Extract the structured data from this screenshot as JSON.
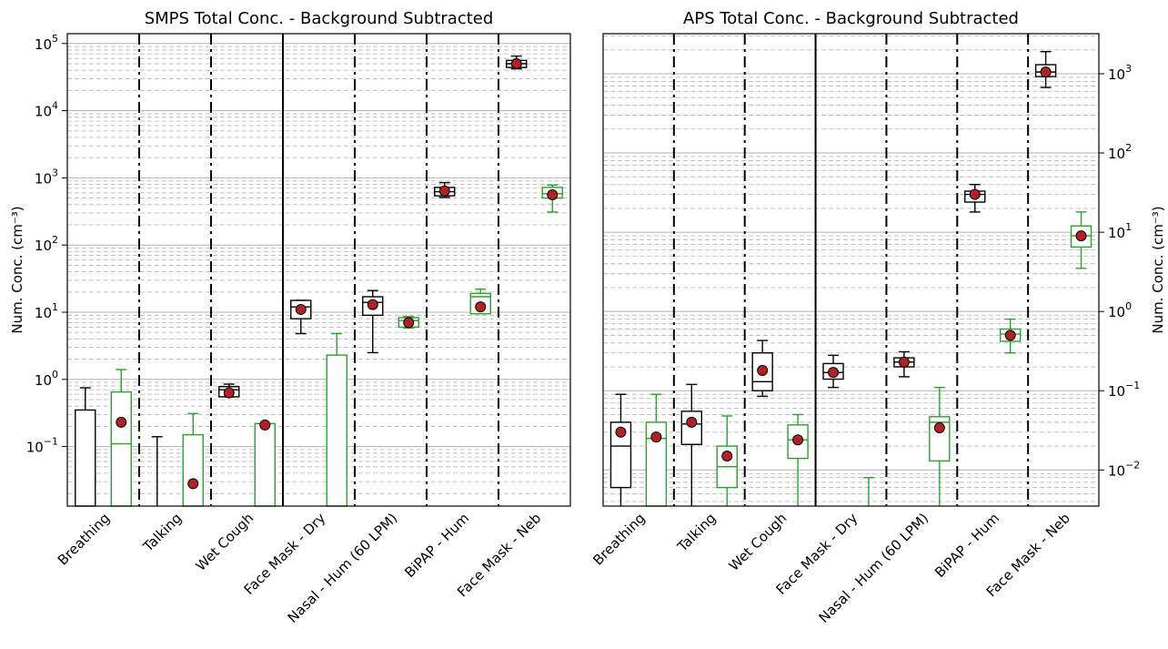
{
  "categories": [
    "Breathing",
    "Talking",
    "Wet Cough",
    "Face Mask - Dry",
    "Nasal - Hum (60 LPM)",
    "BiPAP - Hum",
    "Face Mask - Neb"
  ],
  "chart_data": [
    {
      "type": "box",
      "title": "SMPS Total Conc. - Background Subtracted",
      "ylabel": "Num. Conc. (cm⁻³)",
      "yscale": "log",
      "ylim": [
        0.013,
        140000
      ],
      "yticks": [
        {
          "value": 0.1,
          "base": "10",
          "exp": "−1"
        },
        {
          "value": 1,
          "base": "10",
          "exp": "0"
        },
        {
          "value": 10,
          "base": "10",
          "exp": "1"
        },
        {
          "value": 100,
          "base": "10",
          "exp": "2"
        },
        {
          "value": 1000,
          "base": "10",
          "exp": "3"
        },
        {
          "value": 10000,
          "base": "10",
          "exp": "4"
        },
        {
          "value": 100000,
          "base": "10",
          "exp": "5"
        }
      ],
      "ytick_side": "left",
      "grid": "y major + minor",
      "colors": {
        "series_a": "#000000",
        "series_b": "#2ca02c",
        "mean_fill": "#b22222"
      },
      "series": [
        {
          "color": "black",
          "boxes": [
            {
              "category": "Breathing",
              "whisker_low": null,
              "q1": null,
              "median": null,
              "q3": 0.35,
              "whisker_high": 0.75,
              "mean": null
            },
            {
              "category": "Talking",
              "whisker_low": null,
              "q1": null,
              "median": null,
              "q3": null,
              "whisker_high": 0.14,
              "mean": null
            },
            {
              "category": "Wet Cough",
              "whisker_low": 0.55,
              "q1": 0.55,
              "median": 0.7,
              "q3": 0.78,
              "whisker_high": 0.85,
              "mean": 0.63
            },
            {
              "category": "Face Mask - Dry",
              "whisker_low": 4.8,
              "q1": 8.0,
              "median": 12.0,
              "q3": 15.0,
              "whisker_high": 15.0,
              "mean": 11.0
            },
            {
              "category": "Nasal - Hum (60 LPM)",
              "whisker_low": 2.5,
              "q1": 9.0,
              "median": 14.0,
              "q3": 17.0,
              "whisker_high": 21.0,
              "mean": 13.0
            },
            {
              "category": "BiPAP - Hum",
              "whisker_low": 510,
              "q1": 540,
              "median": 620,
              "q3": 720,
              "whisker_high": 850,
              "mean": 640
            },
            {
              "category": "Face Mask - Neb",
              "whisker_low": 42000,
              "q1": 44000,
              "median": 50000,
              "q3": 56000,
              "whisker_high": 65000,
              "mean": 50000
            }
          ]
        },
        {
          "color": "green",
          "boxes": [
            {
              "category": "Breathing",
              "whisker_low": null,
              "q1": null,
              "median": 0.11,
              "q3": 0.65,
              "whisker_high": 1.4,
              "mean": 0.23
            },
            {
              "category": "Talking",
              "whisker_low": null,
              "q1": null,
              "median": null,
              "q3": 0.15,
              "whisker_high": 0.31,
              "mean": 0.028
            },
            {
              "category": "Wet Cough",
              "whisker_low": null,
              "q1": null,
              "median": null,
              "q3": 0.22,
              "whisker_high": 0.22,
              "mean": 0.21
            },
            {
              "category": "Face Mask - Dry",
              "whisker_low": null,
              "q1": null,
              "median": null,
              "q3": 2.3,
              "whisker_high": 4.8,
              "mean": null
            },
            {
              "category": "Nasal - Hum (60 LPM)",
              "whisker_low": 5.8,
              "q1": 6.0,
              "median": 7.5,
              "q3": 8.3,
              "whisker_high": 8.6,
              "mean": 7.0
            },
            {
              "category": "BiPAP - Hum",
              "whisker_low": 9.5,
              "q1": 9.5,
              "median": 17.0,
              "q3": 19.0,
              "whisker_high": 22.0,
              "mean": 12.0
            },
            {
              "category": "Face Mask - Neb",
              "whisker_low": 310,
              "q1": 500,
              "median": 580,
              "q3": 720,
              "whisker_high": 780,
              "mean": 560
            }
          ]
        }
      ]
    },
    {
      "type": "box",
      "title": "APS Total Conc. - Background Subtracted",
      "ylabel": "Num. Conc. (cm⁻³)",
      "yscale": "log",
      "ylim": [
        0.0035,
        3200
      ],
      "yticks": [
        {
          "value": 0.01,
          "base": "10",
          "exp": "−2"
        },
        {
          "value": 0.1,
          "base": "10",
          "exp": "−1"
        },
        {
          "value": 1,
          "base": "10",
          "exp": "0"
        },
        {
          "value": 10,
          "base": "10",
          "exp": "1"
        },
        {
          "value": 100,
          "base": "10",
          "exp": "2"
        },
        {
          "value": 1000,
          "base": "10",
          "exp": "3"
        }
      ],
      "ytick_side": "right",
      "grid": "y major + minor",
      "series": [
        {
          "color": "black",
          "boxes": [
            {
              "category": "Breathing",
              "whisker_low": null,
              "q1": 0.006,
              "median": 0.02,
              "q3": 0.04,
              "whisker_high": 0.09,
              "mean": 0.03
            },
            {
              "category": "Talking",
              "whisker_low": null,
              "q1": 0.021,
              "median": 0.038,
              "q3": 0.055,
              "whisker_high": 0.12,
              "mean": 0.04
            },
            {
              "category": "Wet Cough",
              "whisker_low": 0.085,
              "q1": 0.1,
              "median": 0.13,
              "q3": 0.3,
              "whisker_high": 0.43,
              "mean": 0.18
            },
            {
              "category": "Face Mask - Dry",
              "whisker_low": 0.11,
              "q1": 0.14,
              "median": 0.17,
              "q3": 0.22,
              "whisker_high": 0.28,
              "mean": 0.17
            },
            {
              "category": "Nasal - Hum (60 LPM)",
              "whisker_low": 0.15,
              "q1": 0.2,
              "median": 0.23,
              "q3": 0.26,
              "whisker_high": 0.31,
              "mean": 0.23
            },
            {
              "category": "BiPAP - Hum",
              "whisker_low": 18,
              "q1": 24,
              "median": 30,
              "q3": 33,
              "whisker_high": 40,
              "mean": 30
            },
            {
              "category": "Face Mask - Neb",
              "whisker_low": 670,
              "q1": 920,
              "median": 1050,
              "q3": 1300,
              "whisker_high": 1900,
              "mean": 1050
            }
          ]
        },
        {
          "color": "green",
          "boxes": [
            {
              "category": "Breathing",
              "whisker_low": null,
              "q1": null,
              "median": 0.025,
              "q3": 0.04,
              "whisker_high": 0.09,
              "mean": 0.026
            },
            {
              "category": "Talking",
              "whisker_low": null,
              "q1": 0.006,
              "median": 0.011,
              "q3": 0.02,
              "whisker_high": 0.048,
              "mean": 0.015
            },
            {
              "category": "Wet Cough",
              "whisker_low": null,
              "q1": 0.014,
              "median": 0.024,
              "q3": 0.037,
              "whisker_high": 0.05,
              "mean": 0.024
            },
            {
              "category": "Face Mask - Dry",
              "whisker_low": null,
              "q1": null,
              "median": null,
              "q3": null,
              "whisker_high": 0.008,
              "mean": null
            },
            {
              "category": "Nasal - Hum (60 LPM)",
              "whisker_low": null,
              "q1": 0.013,
              "median": 0.04,
              "q3": 0.047,
              "whisker_high": 0.11,
              "mean": 0.034
            },
            {
              "category": "BiPAP - Hum",
              "whisker_low": 0.3,
              "q1": 0.42,
              "median": 0.52,
              "q3": 0.6,
              "whisker_high": 0.8,
              "mean": 0.5
            },
            {
              "category": "Face Mask - Neb",
              "whisker_low": 3.5,
              "q1": 6.5,
              "median": 9.0,
              "q3": 12.0,
              "whisker_high": 18.0,
              "mean": 9.0
            }
          ]
        }
      ]
    }
  ]
}
